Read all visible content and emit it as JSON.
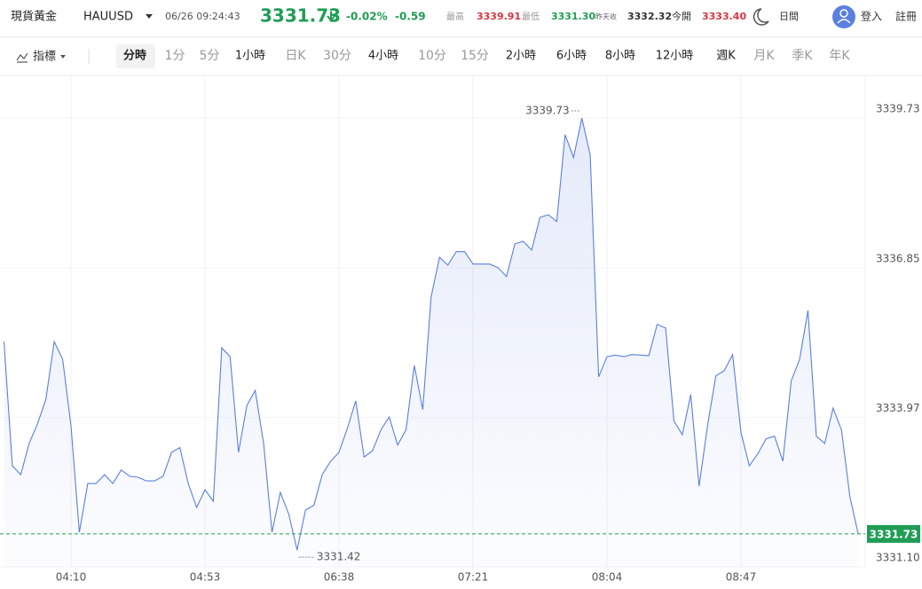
{
  "header": {
    "name": "現貨黃金",
    "symbol": "HAUUSD",
    "datetime": "06/26 09:24:43",
    "price": "3331.73",
    "change_pct": "-0.02%",
    "change": "-0.59",
    "high_label": "最高",
    "high": "3339.91",
    "low_label": "最低",
    "low": "3331.30",
    "prev_close_label": "昨天收",
    "prev_close": "3332.32",
    "open_label": "今開",
    "open": "3333.40",
    "theme": "日間",
    "login": "登入",
    "register": "註冊"
  },
  "toolbar": {
    "indicators": "指標",
    "intervals": [
      "分時",
      "1分",
      "5分",
      "1小時",
      "日K",
      "30分",
      "4小時",
      "10分",
      "15分",
      "2小時",
      "6小時",
      "8小時",
      "12小時",
      "週K",
      "月K",
      "季K",
      "年K"
    ]
  },
  "chart_data": {
    "type": "line",
    "color": "#5b7fdf",
    "categories": [
      null,
      null,
      null,
      null,
      null,
      null,
      null,
      null,
      "04:10",
      null,
      null,
      null,
      null,
      null,
      null,
      null,
      null,
      null,
      null,
      null,
      null,
      null,
      null,
      null,
      "04:53",
      null,
      null,
      null,
      null,
      null,
      null,
      null,
      null,
      null,
      null,
      null,
      null,
      null,
      null,
      null,
      "06:38",
      null,
      null,
      null,
      null,
      null,
      null,
      null,
      null,
      null,
      null,
      null,
      null,
      null,
      null,
      null,
      "07:21",
      null,
      null,
      null,
      null,
      null,
      null,
      null,
      null,
      null,
      null,
      null,
      null,
      null,
      null,
      null,
      "08:04",
      null,
      null,
      null,
      null,
      null,
      null,
      null,
      null,
      null,
      null,
      null,
      null,
      null,
      null,
      null,
      "08:47",
      null,
      null,
      null,
      null,
      null,
      null,
      null,
      null,
      null,
      null,
      null,
      null,
      null,
      null
    ],
    "values": [
      3335.43,
      3333.04,
      3332.87,
      3333.47,
      3333.85,
      3334.32,
      3335.43,
      3335.09,
      3333.81,
      3331.76,
      3332.7,
      3332.7,
      3332.87,
      3332.7,
      3332.96,
      3332.84,
      3332.82,
      3332.75,
      3332.75,
      3332.84,
      3333.3,
      3333.39,
      3332.7,
      3332.24,
      3332.58,
      3332.36,
      3335.31,
      3335.14,
      3333.3,
      3334.2,
      3334.49,
      3333.47,
      3331.76,
      3332.53,
      3332.11,
      3331.42,
      3332.19,
      3332.28,
      3332.87,
      3333.13,
      3333.3,
      3333.76,
      3334.29,
      3333.21,
      3333.33,
      3333.73,
      3333.98,
      3333.44,
      3333.73,
      3334.97,
      3334.12,
      3336.29,
      3337.05,
      3336.9,
      3337.16,
      3337.16,
      3336.92,
      3336.92,
      3336.92,
      3336.85,
      3336.68,
      3337.31,
      3337.36,
      3337.19,
      3337.82,
      3337.87,
      3337.74,
      3339.41,
      3338.97,
      3339.73,
      3339.02,
      3334.75,
      3335.14,
      3335.17,
      3335.14,
      3335.18,
      3335.17,
      3335.16,
      3335.76,
      3335.69,
      3333.9,
      3333.64,
      3334.41,
      3332.65,
      3333.81,
      3334.77,
      3334.87,
      3335.18,
      3333.68,
      3333.04,
      3333.27,
      3333.56,
      3333.61,
      3333.13,
      3334.67,
      3335.09,
      3336.03,
      3333.61,
      3333.47,
      3334.15,
      3333.73,
      3332.45,
      3331.73
    ],
    "ylim": [
      3331.08,
      3340.55
    ],
    "yticks": [
      {
        "value": 3331.1,
        "label": "3331.10"
      },
      3333.97,
      3336.85,
      3339.73
    ],
    "grid": true
  }
}
